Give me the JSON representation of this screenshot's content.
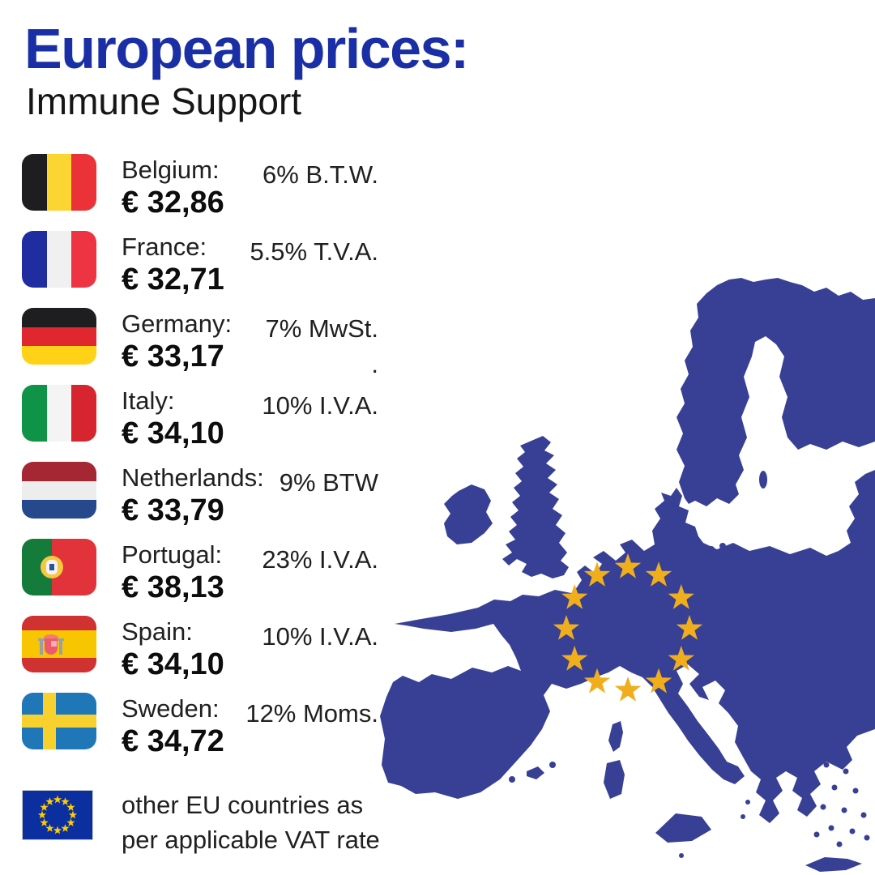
{
  "header": {
    "title": "European prices:",
    "subtitle": "Immune Support"
  },
  "colors": {
    "title_blue": "#1A2FA6",
    "map_blue": "#374095",
    "star_yellow": "#F0AE1D",
    "eu_flag_blue": "#0B2F9E",
    "eu_flag_star": "#FFCC00"
  },
  "rows": [
    {
      "country": "Belgium",
      "label": "Belgium:",
      "price": "€ 32,86",
      "vat": "6% B.T.W.",
      "flag": "be"
    },
    {
      "country": "France",
      "label": "France:",
      "price": "€ 32,71",
      "vat": "5.5% T.V.A.",
      "flag": "fr"
    },
    {
      "country": "Germany",
      "label": "Germany:",
      "price": "€ 33,17",
      "vat": "7% MwSt.",
      "vat_line2": ".",
      "flag": "de"
    },
    {
      "country": "Italy",
      "label": "Italy:",
      "price": "€ 34,10",
      "vat": "10% I.V.A.",
      "flag": "it"
    },
    {
      "country": "Netherlands",
      "label": "Netherlands:",
      "price": "€ 33,79",
      "vat": "9% BTW",
      "flag": "nl"
    },
    {
      "country": "Portugal",
      "label": "Portugal:",
      "price": "€ 38,13",
      "vat": "23% I.V.A.",
      "flag": "pt"
    },
    {
      "country": "Spain",
      "label": "Spain:",
      "price": "€ 34,10",
      "vat": "10% I.V.A.",
      "flag": "es"
    },
    {
      "country": "Sweden",
      "label": "Sweden:",
      "price": "€ 34,72",
      "vat": "12% Moms.",
      "flag": "se"
    }
  ],
  "footer": {
    "note_line1": "other EU countries as",
    "note_line2": "per applicable VAT rate",
    "flag": "eu"
  }
}
